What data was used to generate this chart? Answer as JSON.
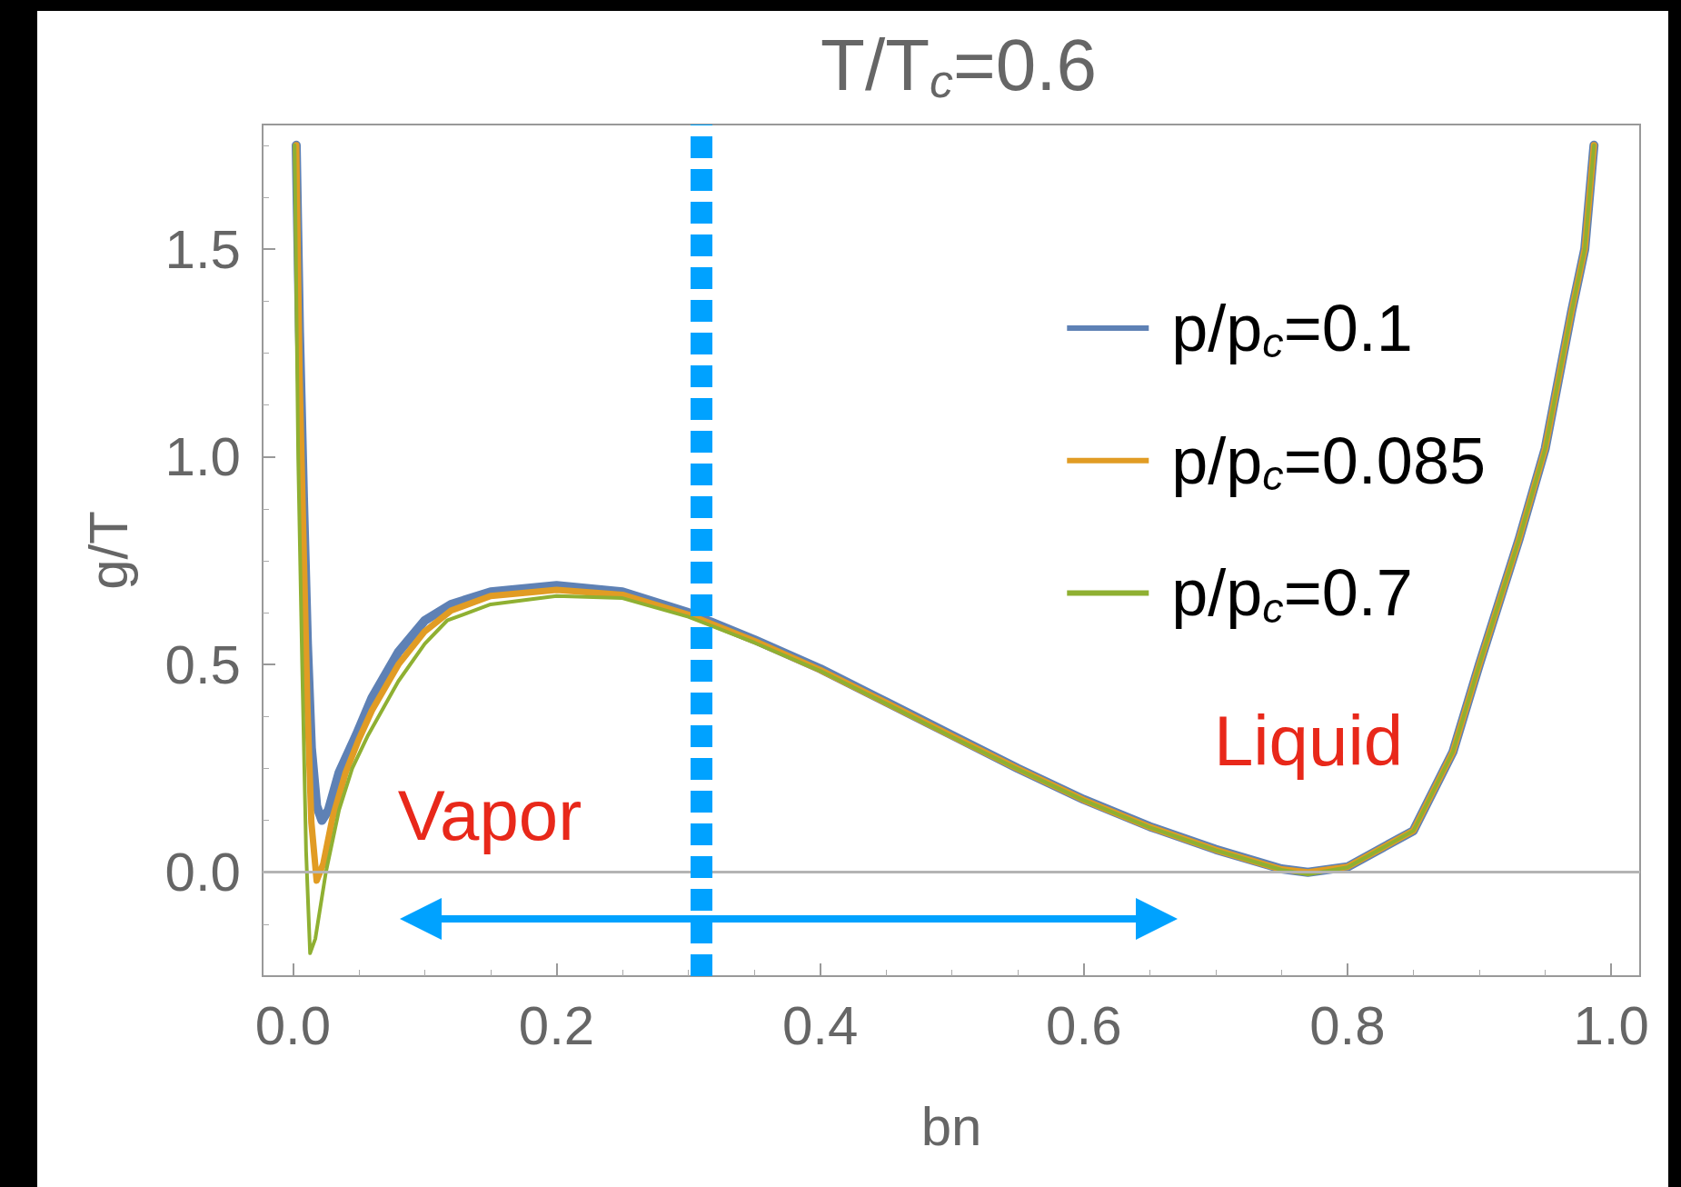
{
  "chart_data": {
    "type": "line",
    "title": "T/T$_{c}$=0.6",
    "xlabel": "bn",
    "ylabel": "g/T",
    "xlim": [
      -0.023,
      1.022
    ],
    "ylim": [
      -0.25,
      1.8
    ],
    "xticks": [
      {
        "value": 0,
        "label": "0.0"
      },
      0.2,
      0.4,
      0.6,
      0.8,
      {
        "value": 1,
        "label": "1.0"
      }
    ],
    "yticks": [
      {
        "value": 0,
        "label": "0.0"
      },
      0.5,
      {
        "value": 1,
        "label": "1.0"
      },
      1.5
    ],
    "grid": false,
    "legend": "top right",
    "marker": "none",
    "line_style": "solid",
    "series": [
      {
        "name": "p/p$_{c}$=0.1",
        "color": "#5e81b5",
        "x": [
          0.0025,
          0.005,
          0.008,
          0.011,
          0.014,
          0.018,
          0.022,
          0.027,
          0.035,
          0.048,
          0.06,
          0.08,
          0.1,
          0.12,
          0.15,
          0.2,
          0.25,
          0.3,
          0.35,
          0.4,
          0.45,
          0.5,
          0.55,
          0.6,
          0.65,
          0.7,
          0.75,
          0.77,
          0.8,
          0.85,
          0.88,
          0.9,
          0.93,
          0.95,
          0.97,
          0.98,
          0.987
        ],
        "values": [
          1.75,
          1.3,
          0.9,
          0.55,
          0.3,
          0.16,
          0.125,
          0.15,
          0.24,
          0.33,
          0.42,
          0.53,
          0.606,
          0.645,
          0.675,
          0.69,
          0.675,
          0.625,
          0.56,
          0.49,
          0.41,
          0.33,
          0.25,
          0.175,
          0.11,
          0.055,
          0.008,
          0.0,
          0.013,
          0.1,
          0.29,
          0.5,
          0.8,
          1.02,
          1.35,
          1.5,
          1.75
        ]
      },
      {
        "name": "p/p$_{c}$=0.085",
        "color": "#e19c24",
        "x": [
          0.0025,
          0.005,
          0.008,
          0.011,
          0.014,
          0.018,
          0.023,
          0.03,
          0.04,
          0.05,
          0.06,
          0.08,
          0.1,
          0.12,
          0.15,
          0.2,
          0.25,
          0.3,
          0.35,
          0.4,
          0.45,
          0.5,
          0.55,
          0.6,
          0.65,
          0.7,
          0.75,
          0.77,
          0.8,
          0.85,
          0.88,
          0.9,
          0.93,
          0.95,
          0.97,
          0.98,
          0.987
        ],
        "values": [
          1.75,
          1.2,
          0.8,
          0.4,
          0.12,
          -0.02,
          0.02,
          0.13,
          0.24,
          0.32,
          0.39,
          0.5,
          0.58,
          0.63,
          0.665,
          0.68,
          0.668,
          0.62,
          0.557,
          0.487,
          0.408,
          0.328,
          0.249,
          0.174,
          0.109,
          0.054,
          0.007,
          0.0,
          0.013,
          0.1,
          0.29,
          0.5,
          0.8,
          1.02,
          1.35,
          1.5,
          1.75
        ]
      },
      {
        "name": "p/p$_{c}$=0.7",
        "color": "#8fb032",
        "x": [
          0.0013,
          0.004,
          0.007,
          0.01,
          0.013,
          0.017,
          0.025,
          0.035,
          0.045,
          0.057,
          0.08,
          0.1,
          0.117,
          0.15,
          0.2,
          0.25,
          0.3,
          0.35,
          0.4,
          0.45,
          0.5,
          0.55,
          0.6,
          0.65,
          0.7,
          0.75,
          0.77,
          0.8,
          0.85,
          0.88,
          0.9,
          0.93,
          0.95,
          0.97,
          0.98,
          0.987
        ],
        "values": [
          1.75,
          1.0,
          0.5,
          0.05,
          -0.195,
          -0.16,
          0.0,
          0.15,
          0.25,
          0.33,
          0.46,
          0.55,
          0.606,
          0.645,
          0.665,
          0.66,
          0.615,
          0.553,
          0.485,
          0.406,
          0.326,
          0.248,
          0.173,
          0.108,
          0.053,
          0.006,
          -0.005,
          0.012,
          0.1,
          0.29,
          0.5,
          0.8,
          1.02,
          1.35,
          1.5,
          1.75
        ]
      }
    ],
    "ref_lines": [
      {
        "axis": "y",
        "value": 0,
        "color": "#b4b4b4",
        "line_style": "solid"
      },
      {
        "axis": "x",
        "value": 0.31,
        "color": "#00a2ff",
        "line_style": "dotted"
      }
    ],
    "annotations": [
      "Vapor",
      "Liquid"
    ]
  }
}
